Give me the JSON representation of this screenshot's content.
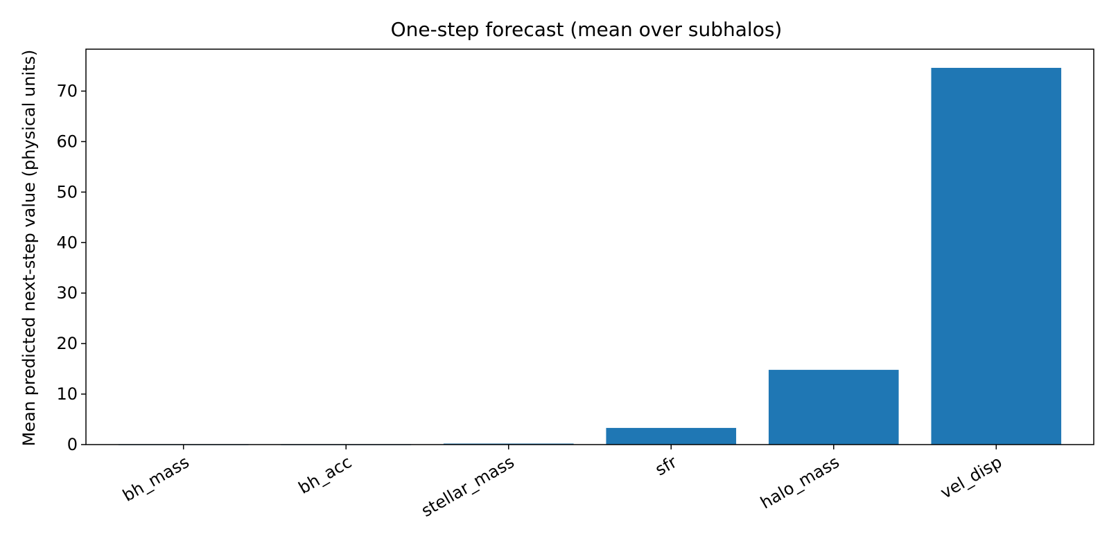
{
  "chart_data": {
    "type": "bar",
    "title": "One-step forecast (mean over subhalos)",
    "xlabel": "",
    "ylabel": "Mean predicted next-step value (physical units)",
    "categories": [
      "bh_mass",
      "bh_acc",
      "stellar_mass",
      "sfr",
      "halo_mass",
      "vel_disp"
    ],
    "values": [
      0.005,
      0.001,
      0.2,
      3.3,
      14.8,
      74.6
    ],
    "ylim": [
      0,
      78.3
    ],
    "yticks": [
      0,
      10,
      20,
      30,
      40,
      50,
      60,
      70
    ],
    "bar_color": "#1f77b4",
    "grid": false,
    "legend": "none"
  }
}
